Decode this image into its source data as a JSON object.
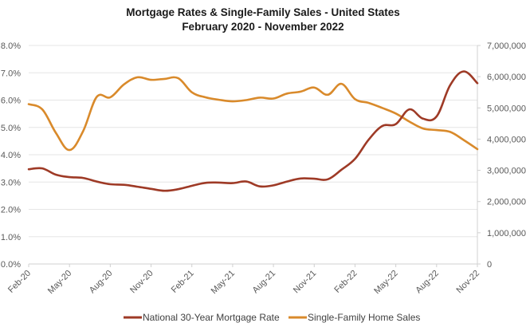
{
  "chart_data": {
    "type": "line",
    "title": "Mortgage Rates & Single-Family Sales - United States",
    "subtitle": "February 2020 - November 2022",
    "xlabel": "",
    "ylabel_left": "",
    "ylabel_right": "",
    "grid": true,
    "legend_position": "bottom",
    "x": [
      "Feb-20",
      "Mar-20",
      "Apr-20",
      "May-20",
      "Jun-20",
      "Jul-20",
      "Aug-20",
      "Sep-20",
      "Oct-20",
      "Nov-20",
      "Dec-20",
      "Jan-21",
      "Feb-21",
      "Mar-21",
      "Apr-21",
      "May-21",
      "Jun-21",
      "Jul-21",
      "Aug-21",
      "Sep-21",
      "Oct-21",
      "Nov-21",
      "Dec-21",
      "Jan-22",
      "Feb-22",
      "Mar-22",
      "Apr-22",
      "May-22",
      "Jun-22",
      "Jul-22",
      "Aug-22",
      "Sep-22",
      "Oct-22",
      "Nov-22"
    ],
    "x_tick_labels": [
      "Feb-20",
      "May-20",
      "Aug-20",
      "Nov-20",
      "Feb-21",
      "May-21",
      "Aug-21",
      "Nov-21",
      "Feb-22",
      "May-22",
      "Aug-22",
      "Nov-22"
    ],
    "y_left": {
      "range": [
        0,
        8
      ],
      "tick_labels": [
        "0.0%",
        "1.0%",
        "2.0%",
        "3.0%",
        "4.0%",
        "5.0%",
        "6.0%",
        "7.0%",
        "8.0%"
      ]
    },
    "y_right": {
      "range": [
        0,
        7000000
      ],
      "tick_labels": [
        "0",
        "1,000,000",
        "2,000,000",
        "3,000,000",
        "4,000,000",
        "5,000,000",
        "6,000,000",
        "7,000,000"
      ]
    },
    "series": [
      {
        "name": "National 30-Year Mortgage Rate",
        "axis": "left",
        "color": "#9e3a26",
        "values": [
          3.47,
          3.5,
          3.27,
          3.18,
          3.15,
          3.02,
          2.92,
          2.9,
          2.83,
          2.75,
          2.68,
          2.74,
          2.86,
          2.97,
          2.98,
          2.96,
          3.02,
          2.84,
          2.88,
          3.02,
          3.13,
          3.12,
          3.1,
          3.45,
          3.85,
          4.55,
          5.05,
          5.12,
          5.66,
          5.32,
          5.4,
          6.55,
          7.05,
          6.62
        ]
      },
      {
        "name": "Single-Family Home Sales",
        "axis": "right",
        "color": "#d98a2b",
        "values": [
          5120000,
          4950000,
          4200000,
          3650000,
          4250000,
          5350000,
          5340000,
          5750000,
          5980000,
          5900000,
          5930000,
          5950000,
          5500000,
          5340000,
          5260000,
          5210000,
          5250000,
          5330000,
          5300000,
          5460000,
          5520000,
          5650000,
          5420000,
          5770000,
          5280000,
          5160000,
          5000000,
          4820000,
          4560000,
          4340000,
          4290000,
          4230000,
          3970000,
          3680000
        ]
      }
    ]
  }
}
